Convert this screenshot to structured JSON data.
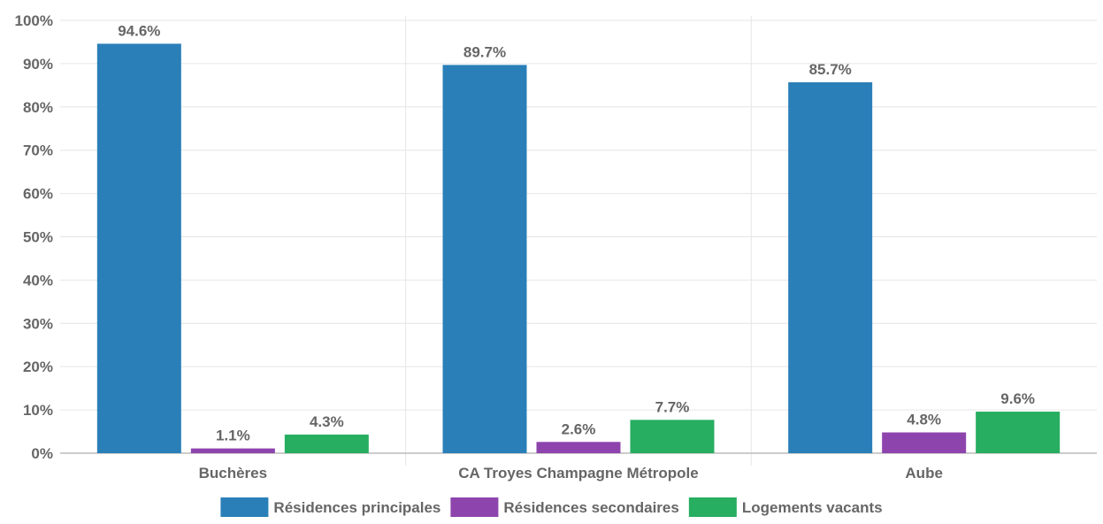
{
  "chart_data": {
    "type": "bar",
    "categories": [
      "Buchères",
      "CA Troyes Champagne Métropole",
      "Aube"
    ],
    "series": [
      {
        "name": "Résidences principales",
        "color": "#2a7fb8",
        "values": [
          94.6,
          89.7,
          85.7
        ],
        "labels": [
          "94.6%",
          "89.7%",
          "85.7%"
        ]
      },
      {
        "name": "Résidences secondaires",
        "color": "#8e44ad",
        "values": [
          1.1,
          2.6,
          4.8
        ],
        "labels": [
          "1.1%",
          "2.6%",
          "4.8%"
        ]
      },
      {
        "name": "Logements vacants",
        "color": "#27ae60",
        "values": [
          4.3,
          7.7,
          9.6
        ],
        "labels": [
          "4.3%",
          "7.7%",
          "9.6%"
        ]
      }
    ],
    "yticks": [
      "0%",
      "10%",
      "20%",
      "30%",
      "40%",
      "50%",
      "60%",
      "70%",
      "80%",
      "90%",
      "100%"
    ],
    "ylim": [
      0,
      100
    ],
    "grid": true,
    "legend_position": "bottom"
  }
}
